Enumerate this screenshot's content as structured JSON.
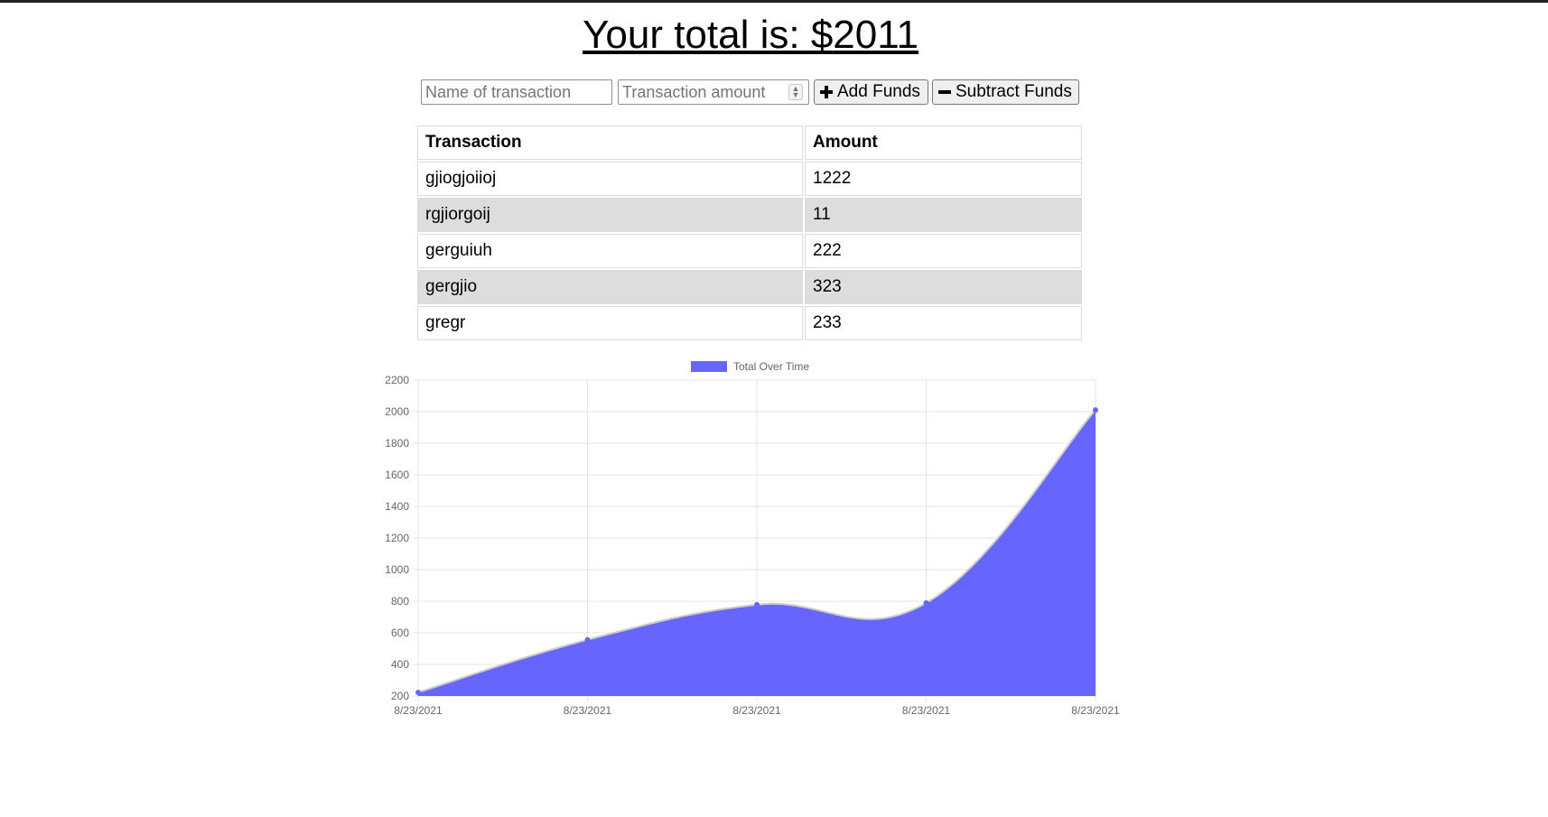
{
  "header": {
    "total_prefix": "Your total is: $",
    "total_value": "2011"
  },
  "form": {
    "name_placeholder": "Name of transaction",
    "amount_placeholder": "Transaction amount",
    "add_label": "Add Funds",
    "subtract_label": "Subtract Funds"
  },
  "table": {
    "headers": [
      "Transaction",
      "Amount"
    ],
    "rows": [
      {
        "name": "gjiogjoiioj",
        "amount": "1222"
      },
      {
        "name": "rgjiorgoij",
        "amount": "11"
      },
      {
        "name": "gerguiuh",
        "amount": "222"
      },
      {
        "name": "gergjio",
        "amount": "323"
      },
      {
        "name": "gregr",
        "amount": "233"
      }
    ]
  },
  "colors": {
    "series_fill": "#6666ff",
    "series_line": "#c8c8c8",
    "grid": "#e4e4e4",
    "alt_row": "#dddddd"
  },
  "chart_data": {
    "type": "area",
    "title": "",
    "legend": {
      "label": "Total Over Time",
      "position": "top"
    },
    "x": [
      "8/23/2021",
      "8/23/2021",
      "8/23/2021",
      "8/23/2021",
      "8/23/2021"
    ],
    "series": [
      {
        "name": "Total Over Time",
        "values": [
          223,
          556,
          778,
          789,
          2011
        ]
      }
    ],
    "ylim": [
      200,
      2200
    ],
    "yticks": [
      200,
      400,
      600,
      800,
      1000,
      1200,
      1400,
      1600,
      1800,
      2000,
      2200
    ],
    "grid": true
  }
}
